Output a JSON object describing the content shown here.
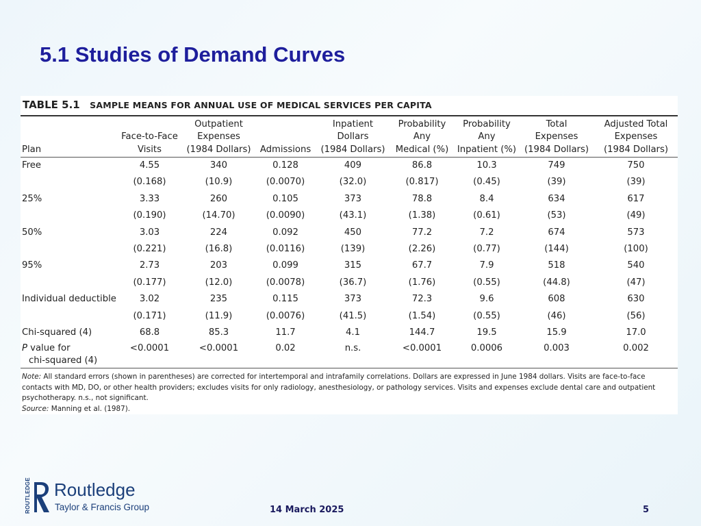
{
  "slide": {
    "title": "5.1 Studies of Demand Curves",
    "date": "14 March 2025",
    "page": "5"
  },
  "table": {
    "number": "TABLE 5.1",
    "caption": "SAMPLE MEANS FOR ANNUAL USE OF MEDICAL SERVICES PER CAPITA",
    "headers": [
      [
        "Plan"
      ],
      [
        "Face-to-Face",
        "Visits"
      ],
      [
        "Outpatient",
        "Expenses",
        "(1984 Dollars)"
      ],
      [
        "Admissions"
      ],
      [
        "Inpatient",
        "Dollars",
        "(1984 Dollars)"
      ],
      [
        "Probability",
        "Any",
        "Medical (%)"
      ],
      [
        "Probability",
        "Any",
        "Inpatient (%)"
      ],
      [
        "Total",
        "Expenses",
        "(1984 Dollars)"
      ],
      [
        "Adjusted Total",
        "Expenses",
        "(1984 Dollars)"
      ]
    ],
    "rows": [
      [
        "Free",
        "4.55",
        "340",
        "0.128",
        "409",
        "86.8",
        "10.3",
        "749",
        "750"
      ],
      [
        "",
        "(0.168)",
        "(10.9)",
        "(0.0070)",
        "(32.0)",
        "(0.817)",
        "(0.45)",
        "(39)",
        "(39)"
      ],
      [
        "25%",
        "3.33",
        "260",
        "0.105",
        "373",
        "78.8",
        "8.4",
        "634",
        "617"
      ],
      [
        "",
        "(0.190)",
        "(14.70)",
        "(0.0090)",
        "(43.1)",
        "(1.38)",
        "(0.61)",
        "(53)",
        "(49)"
      ],
      [
        "50%",
        "3.03",
        "224",
        "0.092",
        "450",
        "77.2",
        "7.2",
        "674",
        "573"
      ],
      [
        "",
        "(0.221)",
        "(16.8)",
        "(0.0116)",
        "(139)",
        "(2.26)",
        "(0.77)",
        "(144)",
        "(100)"
      ],
      [
        "95%",
        "2.73",
        "203",
        "0.099",
        "315",
        "67.7",
        "7.9",
        "518",
        "540"
      ],
      [
        "",
        "(0.177)",
        "(12.0)",
        "(0.0078)",
        "(36.7)",
        "(1.76)",
        "(0.55)",
        "(44.8)",
        "(47)"
      ],
      [
        "Individual deductible",
        "3.02",
        "235",
        "0.115",
        "373",
        "72.3",
        "9.6",
        "608",
        "630"
      ],
      [
        "",
        "(0.171)",
        "(11.9)",
        "(0.0076)",
        "(41.5)",
        "(1.54)",
        "(0.55)",
        "(46)",
        "(56)"
      ],
      [
        "Chi-squared (4)",
        "68.8",
        "85.3",
        "11.7",
        "4.1",
        "144.7",
        "19.5",
        "15.9",
        "17.0"
      ]
    ],
    "pvalue_row": {
      "label_italic": "P",
      "label_rest": " value for",
      "label_line2": "chi-squared (4)",
      "values": [
        "<0.0001",
        "<0.0001",
        "0.02",
        "n.s.",
        "<0.0001",
        "0.0006",
        "0.003",
        "0.002"
      ]
    },
    "note_label": "Note:",
    "note_text": " All standard errors (shown in parentheses) are corrected for intertemporal and intrafamily correlations. Dollars are expressed in June 1984 dollars. Visits are face-to-face contacts with MD, DO, or other health providers; excludes visits for only radiology, anesthesiology, or pathology services. Visits and expenses exclude dental care and outpatient psychotherapy. n.s., not significant.",
    "source_label": "Source:",
    "source_text": " Manning et al. (1987)."
  },
  "logo": {
    "name": "Routledge",
    "subtitle": "Taylor & Francis Group",
    "side_text": "ROUTLEDGE",
    "color": "#1b3f7a"
  },
  "colors": {
    "title": "#1e1e9c",
    "footer": "#1a1a5e"
  }
}
